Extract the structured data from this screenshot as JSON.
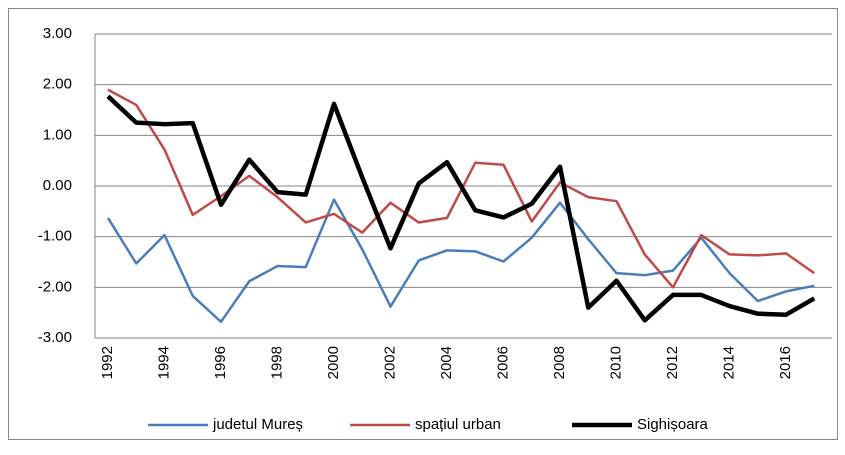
{
  "chart_data": {
    "type": "line",
    "categories": [
      "1992",
      null,
      "1994",
      null,
      "1996",
      null,
      "1998",
      null,
      "2000",
      null,
      "2002",
      null,
      "2004",
      null,
      "2006",
      null,
      "2008",
      null,
      "2010",
      null,
      "2012",
      null,
      "2014",
      null,
      "2016",
      null
    ],
    "series": [
      {
        "name": "judetul Mureș",
        "color": "#4a7ebb",
        "values": [
          -0.63,
          -1.53,
          -0.97,
          -2.17,
          -2.68,
          -1.88,
          -1.58,
          -1.6,
          -0.27,
          -1.25,
          -2.38,
          -1.47,
          -1.27,
          -1.29,
          -1.49,
          -1.02,
          -0.33,
          -1.05,
          -1.72,
          -1.76,
          -1.67,
          -1.02,
          -1.72,
          -2.27,
          -2.08,
          -1.97
        ]
      },
      {
        "name": "spațiul urban",
        "color": "#be4b48",
        "values": [
          1.9,
          1.6,
          0.72,
          -0.57,
          -0.2,
          0.2,
          -0.22,
          -0.72,
          -0.55,
          -0.92,
          -0.33,
          -0.72,
          -0.63,
          0.46,
          0.42,
          -0.7,
          0.07,
          -0.22,
          -0.3,
          -1.35,
          -2.0,
          -0.97,
          -1.35,
          -1.37,
          -1.33,
          -1.72
        ]
      },
      {
        "name": "Sighișoara",
        "color": "#000000",
        "values": [
          1.77,
          1.25,
          1.22,
          1.24,
          -0.37,
          0.52,
          -0.12,
          -0.17,
          1.62,
          0.17,
          -1.23,
          0.05,
          0.47,
          -0.48,
          -0.62,
          -0.35,
          0.38,
          -2.4,
          -1.87,
          -2.65,
          -2.15,
          -2.15,
          -2.37,
          -2.52,
          -2.54,
          -2.22
        ]
      }
    ],
    "ylim": [
      -3,
      3
    ],
    "yticks": [
      {
        "value": -3,
        "label": "-3.00"
      },
      {
        "value": -2,
        "label": "-2.00"
      },
      {
        "value": -1,
        "label": "-1.00"
      },
      {
        "value": 0,
        "label": "0.00"
      },
      {
        "value": 1,
        "label": "1.00"
      },
      {
        "value": 2,
        "label": "2.00"
      },
      {
        "value": 3,
        "label": "3.00"
      }
    ],
    "grid": true,
    "legend": "bottom"
  }
}
